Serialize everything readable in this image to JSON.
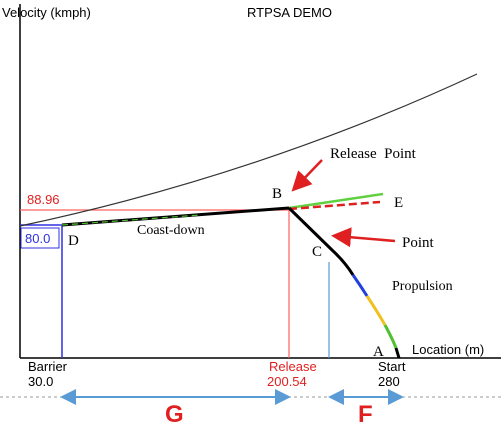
{
  "title": "RTPSA DEMO",
  "y_axis_label": "Velocity (kmph)",
  "x_axis_label": "Location (m)",
  "y_markers": [
    {
      "label": "88.96"
    },
    {
      "label": "80.0"
    }
  ],
  "x_markers": [
    {
      "name": "Barrier",
      "label": "30.0"
    },
    {
      "name": "Release",
      "label": "200.54"
    },
    {
      "name": "Start",
      "label": "280"
    }
  ],
  "points": [
    "A",
    "B",
    "C",
    "D",
    "E"
  ],
  "annotations": {
    "release": "Release  Point",
    "point": "Point",
    "coast": "Coast-down",
    "propulsion": "Propulsion"
  },
  "spans": [
    "G",
    "F"
  ]
}
